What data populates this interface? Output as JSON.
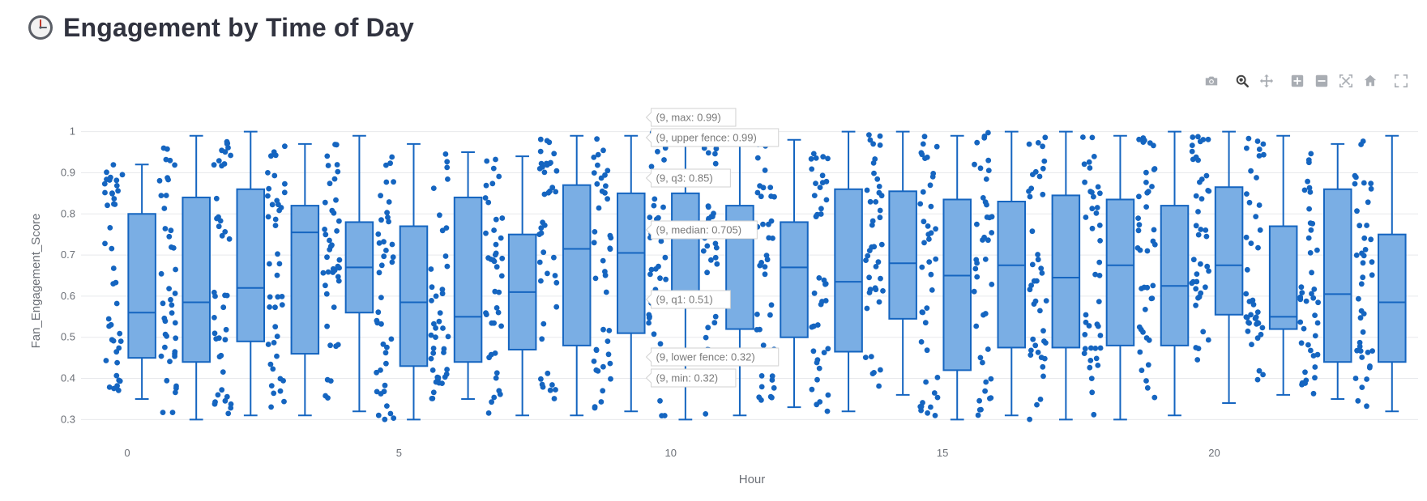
{
  "header": {
    "icon": "clock-icon",
    "title": "Engagement by Time of Day"
  },
  "modebar": [
    {
      "name": "camera-icon",
      "label": "Download plot as a png"
    },
    {
      "name": "zoom-icon",
      "label": "Zoom"
    },
    {
      "name": "pan-icon",
      "label": "Pan"
    },
    {
      "name": "zoom-in-icon",
      "label": "Zoom in"
    },
    {
      "name": "zoom-out-icon",
      "label": "Zoom out"
    },
    {
      "name": "autoscale-icon",
      "label": "Autoscale"
    },
    {
      "name": "reset-axes-icon",
      "label": "Reset axes"
    },
    {
      "name": "fullscreen-icon",
      "label": "Fullscreen"
    }
  ],
  "chart_data": {
    "type": "box",
    "xlabel": "Hour",
    "ylabel": "Fan_Engagement_Score",
    "xlim": [
      -0.85,
      23.75
    ],
    "ylim": [
      0.285,
      1.015
    ],
    "xticks": [
      0,
      5,
      10,
      15,
      20
    ],
    "yticks": [
      0.3,
      0.4,
      0.5,
      0.6,
      0.7,
      0.8,
      0.9,
      1
    ],
    "grid": true,
    "colors": {
      "fill": "#7aaee4",
      "line": "#1565c0",
      "points": "#1565c0"
    },
    "boxes": [
      {
        "hour": 0,
        "min": 0.35,
        "q1": 0.45,
        "median": 0.56,
        "q3": 0.8,
        "max": 0.92
      },
      {
        "hour": 1,
        "min": 0.3,
        "q1": 0.44,
        "median": 0.585,
        "q3": 0.84,
        "max": 0.99
      },
      {
        "hour": 2,
        "min": 0.31,
        "q1": 0.49,
        "median": 0.62,
        "q3": 0.86,
        "max": 1.0
      },
      {
        "hour": 3,
        "min": 0.31,
        "q1": 0.46,
        "median": 0.755,
        "q3": 0.82,
        "max": 0.97
      },
      {
        "hour": 4,
        "min": 0.32,
        "q1": 0.56,
        "median": 0.67,
        "q3": 0.78,
        "max": 0.99
      },
      {
        "hour": 5,
        "min": 0.3,
        "q1": 0.43,
        "median": 0.585,
        "q3": 0.77,
        "max": 0.97
      },
      {
        "hour": 6,
        "min": 0.35,
        "q1": 0.44,
        "median": 0.55,
        "q3": 0.84,
        "max": 0.95
      },
      {
        "hour": 7,
        "min": 0.31,
        "q1": 0.47,
        "median": 0.61,
        "q3": 0.75,
        "max": 0.94
      },
      {
        "hour": 8,
        "min": 0.31,
        "q1": 0.48,
        "median": 0.715,
        "q3": 0.87,
        "max": 0.99
      },
      {
        "hour": 9,
        "min": 0.32,
        "q1": 0.51,
        "median": 0.705,
        "q3": 0.85,
        "max": 0.99
      },
      {
        "hour": 10,
        "min": 0.3,
        "q1": 0.6,
        "median": 0.75,
        "q3": 0.85,
        "max": 1.0
      },
      {
        "hour": 11,
        "min": 0.31,
        "q1": 0.52,
        "median": 0.74,
        "q3": 0.82,
        "max": 1.0
      },
      {
        "hour": 12,
        "min": 0.33,
        "q1": 0.5,
        "median": 0.67,
        "q3": 0.78,
        "max": 0.98
      },
      {
        "hour": 13,
        "min": 0.32,
        "q1": 0.465,
        "median": 0.635,
        "q3": 0.86,
        "max": 1.0
      },
      {
        "hour": 14,
        "min": 0.36,
        "q1": 0.545,
        "median": 0.68,
        "q3": 0.855,
        "max": 1.0
      },
      {
        "hour": 15,
        "min": 0.3,
        "q1": 0.42,
        "median": 0.65,
        "q3": 0.835,
        "max": 0.99
      },
      {
        "hour": 16,
        "min": 0.31,
        "q1": 0.475,
        "median": 0.675,
        "q3": 0.83,
        "max": 1.0
      },
      {
        "hour": 17,
        "min": 0.3,
        "q1": 0.475,
        "median": 0.645,
        "q3": 0.845,
        "max": 1.0
      },
      {
        "hour": 18,
        "min": 0.3,
        "q1": 0.48,
        "median": 0.675,
        "q3": 0.835,
        "max": 0.99
      },
      {
        "hour": 19,
        "min": 0.31,
        "q1": 0.48,
        "median": 0.625,
        "q3": 0.82,
        "max": 1.0
      },
      {
        "hour": 20,
        "min": 0.34,
        "q1": 0.555,
        "median": 0.675,
        "q3": 0.865,
        "max": 1.0
      },
      {
        "hour": 21,
        "min": 0.36,
        "q1": 0.52,
        "median": 0.55,
        "q3": 0.77,
        "max": 0.99
      },
      {
        "hour": 22,
        "min": 0.35,
        "q1": 0.44,
        "median": 0.605,
        "q3": 0.86,
        "max": 0.97
      },
      {
        "hour": 23,
        "min": 0.32,
        "q1": 0.44,
        "median": 0.585,
        "q3": 0.75,
        "max": 0.99
      }
    ],
    "hover": {
      "hour": 9,
      "labels": [
        {
          "text": "(9, max: 0.99)",
          "value": 0.99
        },
        {
          "text": "(9, upper fence: 0.99)",
          "value": 0.99
        },
        {
          "text": "(9, q3: 0.85)",
          "value": 0.85
        },
        {
          "text": "(9, median: 0.705)",
          "value": 0.705
        },
        {
          "text": "(9, q1: 0.51)",
          "value": 0.51
        },
        {
          "text": "(9, lower fence: 0.32)",
          "value": 0.32
        },
        {
          "text": "(9, min: 0.32)",
          "value": 0.32
        }
      ]
    }
  }
}
